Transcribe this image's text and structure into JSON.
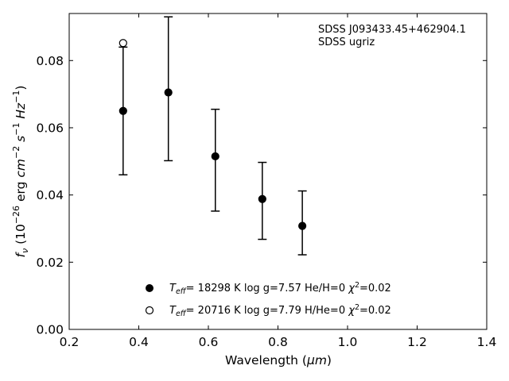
{
  "chart_data": {
    "type": "scatter",
    "title": "",
    "xlabel_main": "Wavelength (",
    "xlabel_unit": "μm",
    "xlabel_close": ")",
    "ylabel_parts": [
      "f",
      "ν",
      " (10",
      "−26",
      " erg ",
      "cm",
      "−2",
      " ",
      "s",
      "−1",
      " ",
      "Hz",
      "−1",
      ")"
    ],
    "xlim": [
      0.2,
      1.4
    ],
    "ylim": [
      0.0,
      0.094
    ],
    "xticks": [
      0.2,
      0.4,
      0.6,
      0.8,
      1.0,
      1.2,
      1.4
    ],
    "xtick_labels": [
      "0.2",
      "0.4",
      "0.6",
      "0.8",
      "1.0",
      "1.2",
      "1.4"
    ],
    "yticks": [
      0.0,
      0.02,
      0.04,
      0.06,
      0.08
    ],
    "ytick_labels": [
      "0.00",
      "0.02",
      "0.04",
      "0.06",
      "0.08"
    ],
    "grid": false,
    "annotations": [
      "SDSS J093433.45+462904.1",
      "SDSS ugriz"
    ],
    "series": [
      {
        "marker": "filled-circle",
        "points": [
          {
            "x": 0.355,
            "y": 0.065,
            "err_low": 0.046,
            "err_high": 0.084
          },
          {
            "x": 0.485,
            "y": 0.0705,
            "err_low": 0.0502,
            "err_high": 0.093
          },
          {
            "x": 0.62,
            "y": 0.0515,
            "err_low": 0.0352,
            "err_high": 0.0655
          },
          {
            "x": 0.755,
            "y": 0.0388,
            "err_low": 0.0268,
            "err_high": 0.0497
          },
          {
            "x": 0.87,
            "y": 0.0308,
            "err_low": 0.0222,
            "err_high": 0.0412
          }
        ]
      },
      {
        "marker": "open-circle",
        "points": [
          {
            "x": 0.355,
            "y": 0.0852
          }
        ]
      }
    ],
    "legend": {
      "placement": "lower-center",
      "entries": [
        {
          "marker": "filled-circle",
          "t_label": "T",
          "t_sub": "eff",
          "text_a": "= 18298 K  log g=7.57  He/H=0  ",
          "chi": "χ",
          "chi_sup": "2",
          "text_b": "=0.02"
        },
        {
          "marker": "open-circle",
          "t_label": "T",
          "t_sub": "eff",
          "text_a": "= 20716 K  log g=7.79  H/He=0  ",
          "chi": "χ",
          "chi_sup": "2",
          "text_b": "=0.02"
        }
      ]
    }
  }
}
